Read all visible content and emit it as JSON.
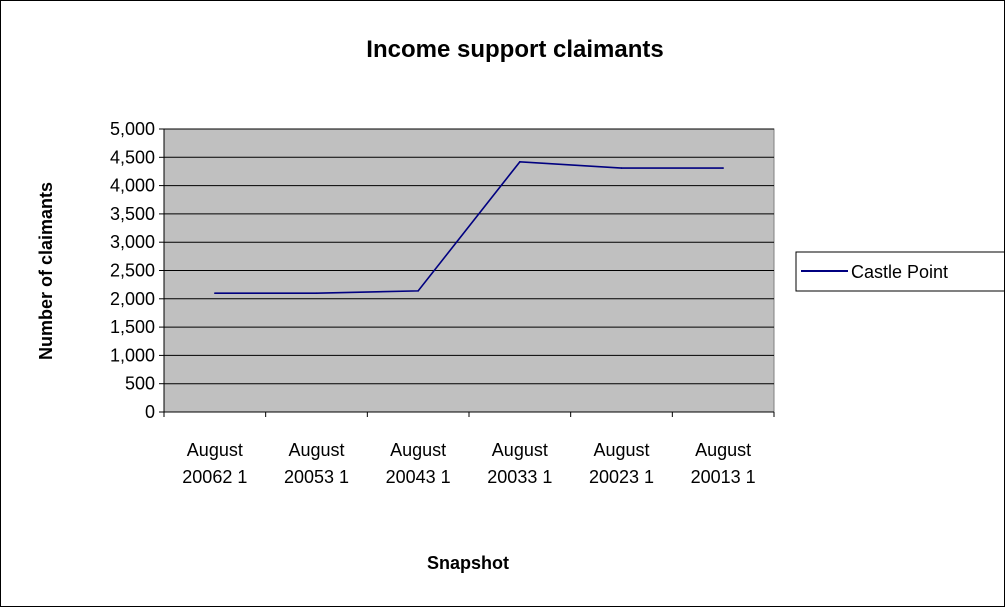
{
  "chart_data": {
    "type": "line",
    "title": "Income support claimants",
    "xlabel": "Snapshot",
    "ylabel": "Number of claimants",
    "categories": [
      [
        "August",
        "20062 1"
      ],
      [
        "August",
        "20053 1"
      ],
      [
        "August",
        "20043 1"
      ],
      [
        "August",
        "20033 1"
      ],
      [
        "August",
        "20023 1"
      ],
      [
        "August",
        "20013 1"
      ]
    ],
    "series": [
      {
        "name": "Castle Point",
        "values": [
          2100,
          2100,
          2140,
          4420,
          4310,
          4310
        ],
        "color": "#000080"
      }
    ],
    "ylim": [
      0,
      5000
    ],
    "yticks": [
      0,
      500,
      1000,
      1500,
      2000,
      2500,
      3000,
      3500,
      4000,
      4500,
      5000
    ],
    "ytick_labels": [
      "0",
      "500",
      "1,000",
      "1,500",
      "2,000",
      "2,500",
      "3,000",
      "3,500",
      "4,000",
      "4,500",
      "5,000"
    ],
    "grid": true,
    "plot_background": "#c0c0c0",
    "legend_position": "right"
  }
}
